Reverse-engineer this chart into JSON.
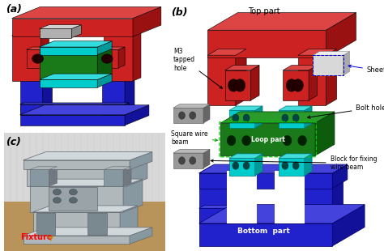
{
  "figure_width": 4.74,
  "figure_height": 3.1,
  "dpi": 100,
  "background_color": "#ffffff",
  "panel_labels": [
    "(a)",
    "(b)",
    "(c)"
  ],
  "panel_label_fontsize": 9,
  "fixture_label": "Fixture",
  "fixture_label_color": "#ff0000",
  "fixture_label_fontsize": 7,
  "top_part_color": "#cc2222",
  "top_part_dark": "#991111",
  "top_part_light": "#dd4444",
  "bottom_part_color": "#2222cc",
  "bottom_part_dark": "#111199",
  "bottom_part_light": "#4444dd",
  "loop_part_color": "#1a7a1a",
  "loop_part_dark": "#0d5c0d",
  "sheet_color": "#00cccc",
  "sheet_dark": "#009999",
  "block_color": "#999999",
  "block_dark": "#666666",
  "block_light": "#bbbbbb"
}
